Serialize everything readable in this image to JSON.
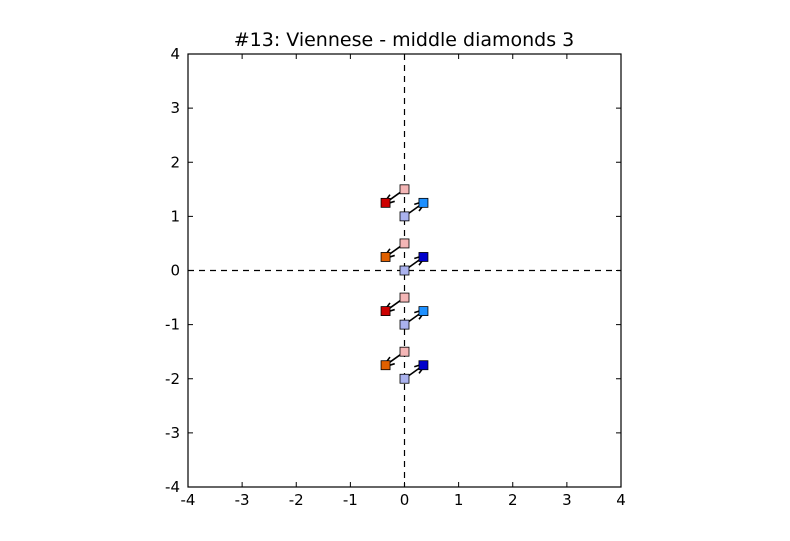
{
  "chart_data": {
    "type": "scatter",
    "title": "#13: Viennese - middle diamonds 3",
    "xlabel": "",
    "ylabel": "",
    "xlim": [
      -4,
      4
    ],
    "ylim": [
      -4,
      4
    ],
    "x_ticks": [
      "-4",
      "-3",
      "-2",
      "-1",
      "0",
      "1",
      "2",
      "3",
      "4"
    ],
    "y_ticks": [
      "4",
      "3",
      "2",
      "1",
      "0",
      "-1",
      "-2",
      "-3",
      "-4"
    ],
    "grid": false,
    "crosshair_lines": [
      {
        "orientation": "vertical",
        "value": 0
      },
      {
        "orientation": "horizontal",
        "value": 0
      }
    ],
    "markers": [
      {
        "x": -0.35,
        "y": 1.25,
        "color": "#cc0000"
      },
      {
        "x": 0.35,
        "y": 1.25,
        "color": "#1e90ff"
      },
      {
        "x": 0,
        "y": 1.5,
        "color": "#f4b6b6"
      },
      {
        "x": 0,
        "y": 1.0,
        "color": "#aab2ee"
      },
      {
        "x": -0.35,
        "y": 0.25,
        "color": "#e06000"
      },
      {
        "x": 0.35,
        "y": 0.25,
        "color": "#0000cc"
      },
      {
        "x": 0,
        "y": 0.5,
        "color": "#f4b6b6"
      },
      {
        "x": 0,
        "y": 0.0,
        "color": "#aab2ee"
      },
      {
        "x": -0.35,
        "y": -0.75,
        "color": "#cc0000"
      },
      {
        "x": 0.35,
        "y": -0.75,
        "color": "#1e90ff"
      },
      {
        "x": 0,
        "y": -0.5,
        "color": "#f4b6b6"
      },
      {
        "x": 0,
        "y": -1.0,
        "color": "#aab2ee"
      },
      {
        "x": -0.35,
        "y": -1.75,
        "color": "#e06000"
      },
      {
        "x": 0.35,
        "y": -1.75,
        "color": "#0000cc"
      },
      {
        "x": 0,
        "y": -1.5,
        "color": "#f4b6b6"
      },
      {
        "x": 0,
        "y": -2.0,
        "color": "#aab2ee"
      }
    ],
    "arrows": [
      {
        "from": [
          0,
          1.5
        ],
        "to": [
          -0.35,
          1.25
        ]
      },
      {
        "from": [
          0,
          1.0
        ],
        "to": [
          0.35,
          1.25
        ]
      },
      {
        "from": [
          0,
          0.5
        ],
        "to": [
          -0.35,
          0.25
        ]
      },
      {
        "from": [
          0,
          0.0
        ],
        "to": [
          0.35,
          0.25
        ]
      },
      {
        "from": [
          0,
          -0.5
        ],
        "to": [
          -0.35,
          -0.75
        ]
      },
      {
        "from": [
          0,
          -1.0
        ],
        "to": [
          0.35,
          -0.75
        ]
      },
      {
        "from": [
          0,
          -1.5
        ],
        "to": [
          -0.35,
          -1.75
        ]
      },
      {
        "from": [
          0,
          -2.0
        ],
        "to": [
          0.35,
          -1.75
        ]
      }
    ]
  }
}
